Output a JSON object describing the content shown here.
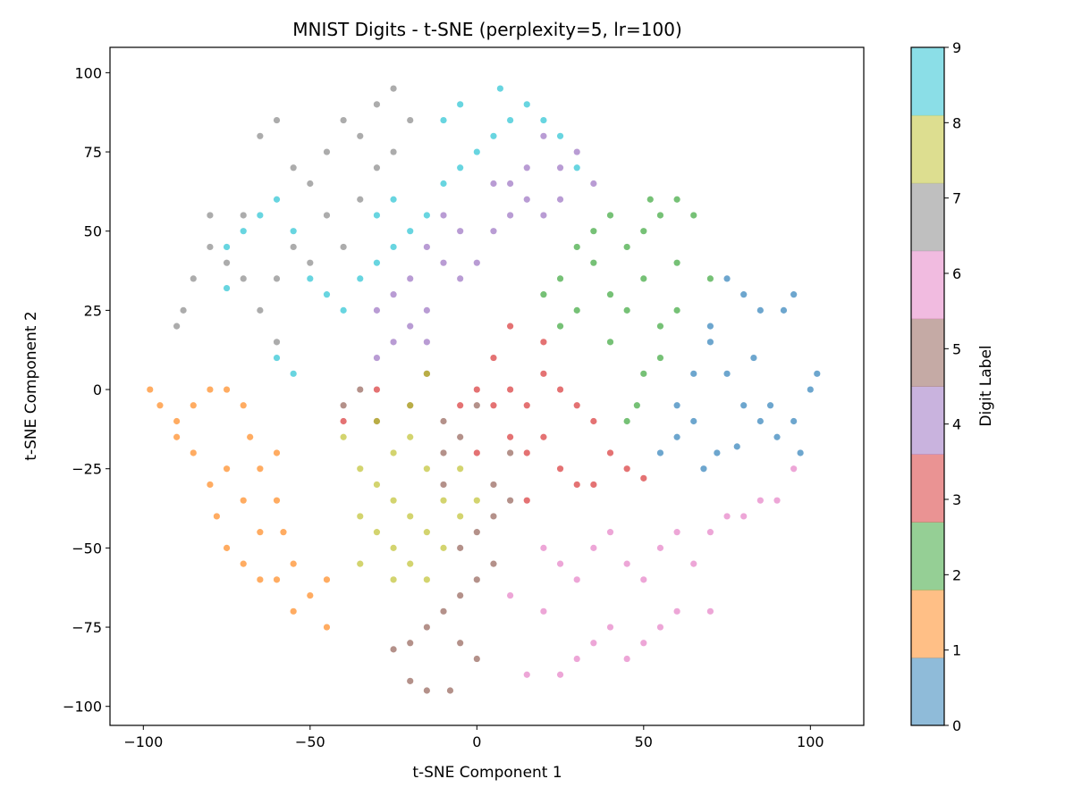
{
  "chart_data": {
    "type": "scatter",
    "title": "MNIST Digits - t-SNE (perplexity=5, lr=100)",
    "xlabel": "t-SNE Component 1",
    "ylabel": "t-SNE Component 2",
    "xlim": [
      -110,
      116
    ],
    "ylim": [
      -106,
      108
    ],
    "xticks": [
      -100,
      -50,
      0,
      50,
      100
    ],
    "yticks": [
      -100,
      -75,
      -50,
      -25,
      0,
      25,
      50,
      75,
      100
    ],
    "grid": false,
    "colorbar": {
      "label": "Digit Label",
      "ticks": [
        0,
        1,
        2,
        3,
        4,
        5,
        6,
        7,
        8,
        9
      ],
      "colormap": "tab10",
      "colors": [
        "#1f77b4",
        "#ff7f0e",
        "#2ca02c",
        "#d62728",
        "#9467bd",
        "#8c564b",
        "#e377c2",
        "#7f7f7f",
        "#bcbd22",
        "#17becf"
      ]
    },
    "series": [
      {
        "label": 0,
        "points": [
          [
            70,
            15
          ],
          [
            75,
            5
          ],
          [
            80,
            -5
          ],
          [
            85,
            -10
          ],
          [
            65,
            -10
          ],
          [
            60,
            -15
          ],
          [
            90,
            -15
          ],
          [
            95,
            -10
          ],
          [
            100,
            0
          ],
          [
            102,
            5
          ],
          [
            80,
            30
          ],
          [
            85,
            25
          ],
          [
            75,
            35
          ],
          [
            70,
            20
          ],
          [
            65,
            5
          ],
          [
            60,
            -5
          ],
          [
            72,
            -20
          ],
          [
            78,
            -18
          ],
          [
            88,
            -5
          ],
          [
            92,
            25
          ],
          [
            95,
            30
          ],
          [
            55,
            -20
          ],
          [
            68,
            -25
          ],
          [
            83,
            10
          ],
          [
            97,
            -20
          ]
        ]
      },
      {
        "label": 1,
        "points": [
          [
            -98,
            0
          ],
          [
            -95,
            -5
          ],
          [
            -90,
            -10
          ],
          [
            -85,
            -5
          ],
          [
            -80,
            0
          ],
          [
            -75,
            0
          ],
          [
            -70,
            -5
          ],
          [
            -85,
            -20
          ],
          [
            -80,
            -30
          ],
          [
            -75,
            -25
          ],
          [
            -70,
            -35
          ],
          [
            -65,
            -25
          ],
          [
            -60,
            -20
          ],
          [
            -60,
            -35
          ],
          [
            -65,
            -45
          ],
          [
            -75,
            -50
          ],
          [
            -70,
            -55
          ],
          [
            -60,
            -60
          ],
          [
            -55,
            -55
          ],
          [
            -50,
            -65
          ],
          [
            -45,
            -60
          ],
          [
            -45,
            -75
          ],
          [
            -55,
            -70
          ],
          [
            -65,
            -60
          ],
          [
            -78,
            -40
          ],
          [
            -90,
            -15
          ],
          [
            -68,
            -15
          ],
          [
            -58,
            -45
          ]
        ]
      },
      {
        "label": 2,
        "points": [
          [
            20,
            30
          ],
          [
            25,
            35
          ],
          [
            30,
            25
          ],
          [
            35,
            40
          ],
          [
            40,
            30
          ],
          [
            45,
            25
          ],
          [
            50,
            35
          ],
          [
            55,
            20
          ],
          [
            30,
            45
          ],
          [
            35,
            50
          ],
          [
            40,
            55
          ],
          [
            45,
            45
          ],
          [
            50,
            50
          ],
          [
            55,
            55
          ],
          [
            60,
            60
          ],
          [
            65,
            55
          ],
          [
            60,
            40
          ],
          [
            55,
            10
          ],
          [
            50,
            5
          ],
          [
            48,
            -5
          ],
          [
            45,
            -10
          ],
          [
            25,
            20
          ],
          [
            40,
            15
          ],
          [
            60,
            25
          ],
          [
            52,
            60
          ],
          [
            70,
            35
          ]
        ]
      },
      {
        "label": 3,
        "points": [
          [
            0,
            0
          ],
          [
            5,
            -5
          ],
          [
            10,
            0
          ],
          [
            15,
            -5
          ],
          [
            20,
            5
          ],
          [
            25,
            0
          ],
          [
            30,
            -5
          ],
          [
            35,
            -10
          ],
          [
            10,
            -15
          ],
          [
            15,
            -20
          ],
          [
            20,
            -15
          ],
          [
            25,
            -25
          ],
          [
            30,
            -30
          ],
          [
            35,
            -30
          ],
          [
            40,
            -20
          ],
          [
            5,
            10
          ],
          [
            10,
            20
          ],
          [
            20,
            15
          ],
          [
            -5,
            -5
          ],
          [
            0,
            -20
          ],
          [
            45,
            -25
          ],
          [
            50,
            -28
          ],
          [
            -40,
            -10
          ],
          [
            -30,
            0
          ],
          [
            15,
            -35
          ]
        ]
      },
      {
        "label": 4,
        "points": [
          [
            -25,
            15
          ],
          [
            -30,
            10
          ],
          [
            -20,
            20
          ],
          [
            -15,
            25
          ],
          [
            -25,
            30
          ],
          [
            -20,
            35
          ],
          [
            -10,
            40
          ],
          [
            -15,
            45
          ],
          [
            -5,
            35
          ],
          [
            0,
            40
          ],
          [
            -5,
            50
          ],
          [
            5,
            50
          ],
          [
            10,
            55
          ],
          [
            15,
            60
          ],
          [
            20,
            55
          ],
          [
            10,
            65
          ],
          [
            15,
            70
          ],
          [
            25,
            70
          ],
          [
            30,
            75
          ],
          [
            35,
            65
          ],
          [
            20,
            80
          ],
          [
            5,
            65
          ],
          [
            -10,
            55
          ],
          [
            -30,
            25
          ],
          [
            -15,
            15
          ],
          [
            25,
            60
          ]
        ]
      },
      {
        "label": 5,
        "points": [
          [
            -40,
            -5
          ],
          [
            -35,
            0
          ],
          [
            -30,
            -10
          ],
          [
            -20,
            -5
          ],
          [
            -15,
            5
          ],
          [
            -10,
            -10
          ],
          [
            -10,
            -20
          ],
          [
            -10,
            -30
          ],
          [
            -5,
            -15
          ],
          [
            5,
            -40
          ],
          [
            10,
            -35
          ],
          [
            5,
            -30
          ],
          [
            0,
            -45
          ],
          [
            -5,
            -50
          ],
          [
            5,
            -55
          ],
          [
            0,
            -60
          ],
          [
            -5,
            -65
          ],
          [
            -10,
            -70
          ],
          [
            -5,
            -80
          ],
          [
            -15,
            -75
          ],
          [
            -20,
            -80
          ],
          [
            -25,
            -82
          ],
          [
            -20,
            -92
          ],
          [
            -15,
            -95
          ],
          [
            -8,
            -95
          ],
          [
            0,
            -85
          ],
          [
            10,
            -20
          ],
          [
            0,
            -5
          ]
        ]
      },
      {
        "label": 6,
        "points": [
          [
            20,
            -50
          ],
          [
            25,
            -55
          ],
          [
            30,
            -60
          ],
          [
            35,
            -50
          ],
          [
            40,
            -45
          ],
          [
            45,
            -55
          ],
          [
            50,
            -60
          ],
          [
            55,
            -50
          ],
          [
            60,
            -45
          ],
          [
            65,
            -55
          ],
          [
            70,
            -45
          ],
          [
            75,
            -40
          ],
          [
            80,
            -40
          ],
          [
            85,
            -35
          ],
          [
            60,
            -70
          ],
          [
            55,
            -75
          ],
          [
            50,
            -80
          ],
          [
            45,
            -85
          ],
          [
            40,
            -75
          ],
          [
            35,
            -80
          ],
          [
            30,
            -85
          ],
          [
            25,
            -90
          ],
          [
            15,
            -90
          ],
          [
            20,
            -70
          ],
          [
            10,
            -65
          ],
          [
            70,
            -70
          ],
          [
            95,
            -25
          ],
          [
            90,
            -35
          ]
        ]
      },
      {
        "label": 7,
        "points": [
          [
            -90,
            20
          ],
          [
            -88,
            25
          ],
          [
            -85,
            35
          ],
          [
            -80,
            45
          ],
          [
            -80,
            55
          ],
          [
            -75,
            40
          ],
          [
            -70,
            55
          ],
          [
            -65,
            80
          ],
          [
            -60,
            85
          ],
          [
            -55,
            70
          ],
          [
            -50,
            65
          ],
          [
            -45,
            75
          ],
          [
            -40,
            85
          ],
          [
            -35,
            80
          ],
          [
            -30,
            90
          ],
          [
            -25,
            95
          ],
          [
            -20,
            85
          ],
          [
            -25,
            75
          ],
          [
            -30,
            70
          ],
          [
            -35,
            60
          ],
          [
            -45,
            55
          ],
          [
            -55,
            45
          ],
          [
            -60,
            35
          ],
          [
            -65,
            25
          ],
          [
            -60,
            15
          ],
          [
            -50,
            40
          ],
          [
            -40,
            45
          ],
          [
            -70,
            35
          ]
        ]
      },
      {
        "label": 8,
        "points": [
          [
            -40,
            -15
          ],
          [
            -35,
            -25
          ],
          [
            -30,
            -30
          ],
          [
            -25,
            -35
          ],
          [
            -20,
            -40
          ],
          [
            -15,
            -45
          ],
          [
            -25,
            -20
          ],
          [
            -20,
            -15
          ],
          [
            -15,
            -25
          ],
          [
            -10,
            -35
          ],
          [
            -5,
            -40
          ],
          [
            -30,
            -45
          ],
          [
            -25,
            -50
          ],
          [
            -20,
            -55
          ],
          [
            -25,
            -60
          ],
          [
            -15,
            -60
          ],
          [
            -35,
            -55
          ],
          [
            -20,
            -5
          ],
          [
            -15,
            5
          ],
          [
            -30,
            -10
          ],
          [
            -10,
            -50
          ],
          [
            -5,
            -25
          ],
          [
            0,
            -35
          ],
          [
            -35,
            -40
          ]
        ]
      },
      {
        "label": 9,
        "points": [
          [
            -75,
            45
          ],
          [
            -70,
            50
          ],
          [
            -65,
            55
          ],
          [
            -60,
            60
          ],
          [
            -55,
            50
          ],
          [
            -50,
            35
          ],
          [
            -45,
            30
          ],
          [
            -40,
            25
          ],
          [
            -35,
            35
          ],
          [
            -30,
            40
          ],
          [
            -25,
            45
          ],
          [
            -30,
            55
          ],
          [
            -25,
            60
          ],
          [
            -15,
            55
          ],
          [
            -10,
            65
          ],
          [
            -5,
            70
          ],
          [
            0,
            75
          ],
          [
            5,
            80
          ],
          [
            10,
            85
          ],
          [
            15,
            90
          ],
          [
            20,
            85
          ],
          [
            25,
            80
          ],
          [
            -10,
            85
          ],
          [
            -5,
            90
          ],
          [
            7,
            95
          ],
          [
            -60,
            10
          ],
          [
            -55,
            5
          ],
          [
            30,
            70
          ],
          [
            -75,
            32
          ],
          [
            -20,
            50
          ]
        ]
      }
    ]
  }
}
